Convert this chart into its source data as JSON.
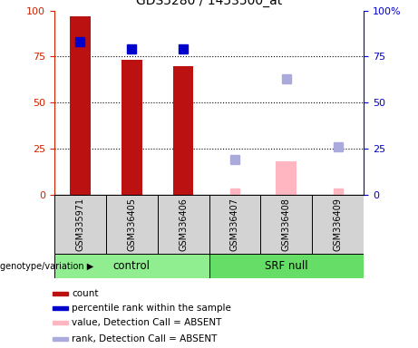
{
  "title": "GDS5280 / 1453500_at",
  "samples": [
    "GSM335971",
    "GSM336405",
    "GSM336406",
    "GSM336407",
    "GSM336408",
    "GSM336409"
  ],
  "bar_values": [
    97,
    73,
    70,
    null,
    null,
    null
  ],
  "bar_color": "#BB1111",
  "absent_bar_values": [
    null,
    null,
    null,
    null,
    18,
    null
  ],
  "absent_bar_color": "#FFB6C1",
  "rank_present": [
    83,
    79,
    79,
    null,
    null,
    null
  ],
  "rank_present_color": "#0000CC",
  "rank_absent": [
    null,
    null,
    null,
    19,
    63,
    26
  ],
  "rank_absent_color": "#AAAADD",
  "value_absent": [
    null,
    null,
    null,
    1,
    null,
    1
  ],
  "value_absent_color": "#FFB6C1",
  "ylim": [
    0,
    100
  ],
  "yticks": [
    0,
    25,
    50,
    75,
    100
  ],
  "bar_width": 0.4,
  "marker_size": 7,
  "tick_color_left": "#CC2200",
  "tick_color_right": "#0000CC",
  "ctrl_color": "#90EE90",
  "srf_color": "#66DD66",
  "legend_items": [
    {
      "label": "count",
      "color": "#BB1111"
    },
    {
      "label": "percentile rank within the sample",
      "color": "#0000CC"
    },
    {
      "label": "value, Detection Call = ABSENT",
      "color": "#FFB6C1"
    },
    {
      "label": "rank, Detection Call = ABSENT",
      "color": "#AAAADD"
    }
  ]
}
